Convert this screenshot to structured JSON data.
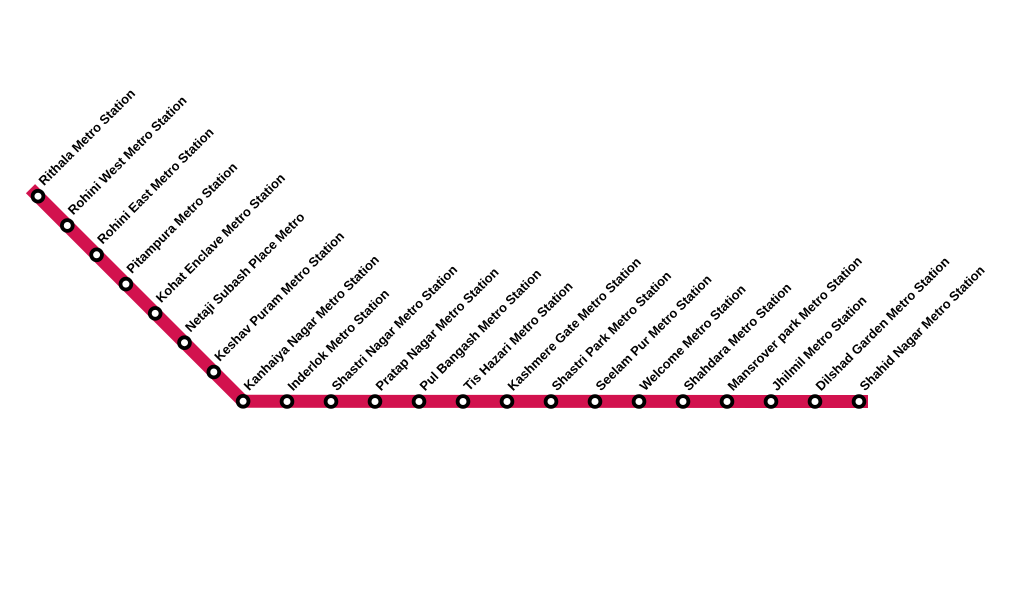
{
  "diagram": {
    "type": "metro-line-route-map",
    "station_count": 22
  },
  "colors": {
    "line": "#D2124E",
    "marker_fill": "#FFFFFF",
    "marker_stroke": "#000000",
    "label_text": "#000000",
    "background": "#FFFFFF"
  },
  "stations": [
    {
      "label": "Rithala Metro Station"
    },
    {
      "label": "Rohini West Metro Station"
    },
    {
      "label": "Rohini East Metro Station"
    },
    {
      "label": "Pitampura Metro Station"
    },
    {
      "label": "Kohat Enclave Metro Station"
    },
    {
      "label": "Netaji Subash Place Metro"
    },
    {
      "label": "Keshav Puram Metro Station"
    },
    {
      "label": "Kanhaiya Nagar Metro Station"
    },
    {
      "label": "Inderlok Metro Station"
    },
    {
      "label": "Shastri Nagar Metro Station"
    },
    {
      "label": "Pratap Nagar Metro Station"
    },
    {
      "label": "Pul Bangash Metro Station"
    },
    {
      "label": "Tis Hazari Metro Station"
    },
    {
      "label": "Kashmere Gate Metro Station"
    },
    {
      "label": "Shastri Park Metro Station"
    },
    {
      "label": "Seelam Pur Metro Station"
    },
    {
      "label": "Welcome Metro Station"
    },
    {
      "label": "Shahdara Metro Station"
    },
    {
      "label": "Mansrover park Metro Station"
    },
    {
      "label": "Jhilmil Metro Station"
    },
    {
      "label": "Dilshad Garden Metro Station"
    },
    {
      "label": "Shahid Nagar Metro Station"
    }
  ]
}
